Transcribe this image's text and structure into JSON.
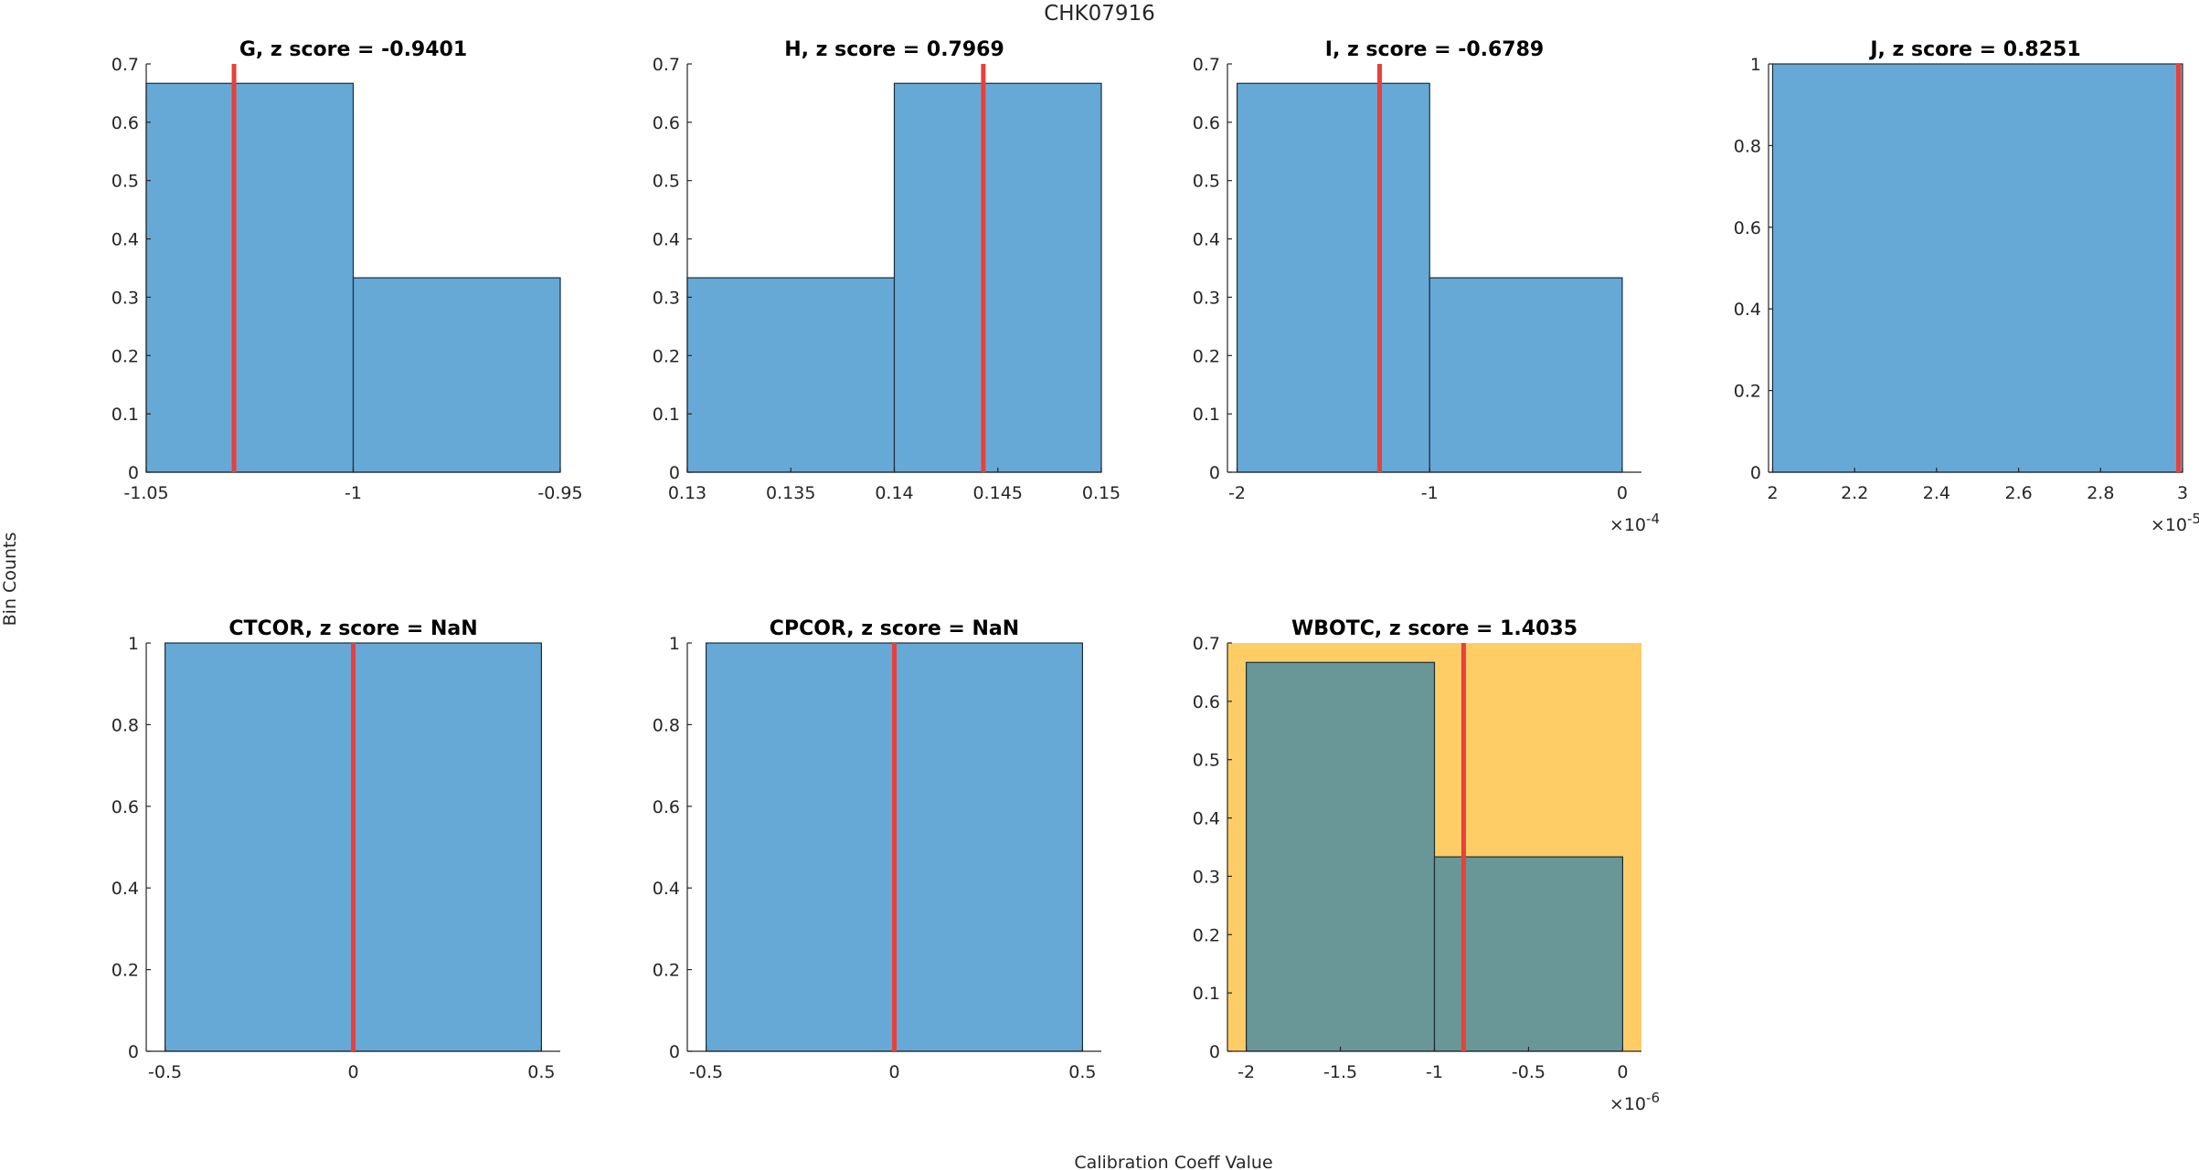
{
  "figure": {
    "title": "CHK07916",
    "xlabel": "Calibration Coeff Value",
    "ylabel": "Bin Counts"
  },
  "colors": {
    "bar_fill": "#67a9d6",
    "bar_edge": "#1b2d3a",
    "marker": "#e8403a",
    "highlight_bg": "#ffcd66",
    "highlight_bar": "#699797",
    "axis": "#262626"
  },
  "chart_data": [
    {
      "type": "bar",
      "title": "G, z score = -0.9401",
      "xlim": [
        -1.05,
        -0.95
      ],
      "ylim": [
        0,
        0.7
      ],
      "xticks": [
        -1.05,
        -1,
        -0.95
      ],
      "xtick_labels": [
        "-1.05",
        "-1",
        "-0.95"
      ],
      "yticks": [
        0,
        0.1,
        0.2,
        0.3,
        0.4,
        0.5,
        0.6,
        0.7
      ],
      "ytick_labels": [
        "0",
        "0.1",
        "0.2",
        "0.3",
        "0.4",
        "0.5",
        "0.6",
        "0.7"
      ],
      "bin_edges": [
        -1.05,
        -1,
        -0.95
      ],
      "values": [
        0.6667,
        0.3333
      ],
      "marker_x": -1.0288,
      "highlight": false
    },
    {
      "type": "bar",
      "title": "H, z score = 0.7969",
      "xlim": [
        0.13,
        0.15
      ],
      "ylim": [
        0,
        0.7
      ],
      "xticks": [
        0.13,
        0.135,
        0.14,
        0.145,
        0.15
      ],
      "xtick_labels": [
        "0.13",
        "0.135",
        "0.14",
        "0.145",
        "0.15"
      ],
      "yticks": [
        0,
        0.1,
        0.2,
        0.3,
        0.4,
        0.5,
        0.6,
        0.7
      ],
      "ytick_labels": [
        "0",
        "0.1",
        "0.2",
        "0.3",
        "0.4",
        "0.5",
        "0.6",
        "0.7"
      ],
      "bin_edges": [
        0.13,
        0.14,
        0.15
      ],
      "values": [
        0.3333,
        0.6667
      ],
      "marker_x": 0.1443,
      "highlight": false
    },
    {
      "type": "bar",
      "title": "I, z score = -0.6789",
      "xlim": [
        -2.05,
        0.1
      ],
      "ylim": [
        0,
        0.7
      ],
      "xticks": [
        -2,
        -1,
        0
      ],
      "xtick_labels": [
        "-2",
        "-1",
        "0"
      ],
      "yticks": [
        0,
        0.1,
        0.2,
        0.3,
        0.4,
        0.5,
        0.6,
        0.7
      ],
      "ytick_labels": [
        "0",
        "0.1",
        "0.2",
        "0.3",
        "0.4",
        "0.5",
        "0.6",
        "0.7"
      ],
      "bin_edges": [
        -2,
        -1,
        0
      ],
      "values": [
        0.6667,
        0.3333
      ],
      "marker_x": -1.26,
      "exponent_base": "×10",
      "exponent_power": "-4",
      "highlight": false
    },
    {
      "type": "bar",
      "title": "J, z score = 0.8251",
      "xlim": [
        1.99,
        3.0
      ],
      "ylim": [
        0,
        1
      ],
      "xticks": [
        2,
        2.2,
        2.4,
        2.6,
        2.8,
        3
      ],
      "xtick_labels": [
        "2",
        "2.2",
        "2.4",
        "2.6",
        "2.8",
        "3"
      ],
      "yticks": [
        0,
        0.2,
        0.4,
        0.6,
        0.8,
        1
      ],
      "ytick_labels": [
        "0",
        "0.2",
        "0.4",
        "0.6",
        "0.8",
        "1"
      ],
      "bin_edges": [
        2,
        3
      ],
      "values": [
        1
      ],
      "marker_x": 2.99,
      "exponent_base": "×10",
      "exponent_power": "-5",
      "highlight": false
    },
    {
      "type": "bar",
      "title": "CTCOR, z score = NaN",
      "xlim": [
        -0.55,
        0.55
      ],
      "ylim": [
        0,
        1
      ],
      "xticks": [
        -0.5,
        0,
        0.5
      ],
      "xtick_labels": [
        "-0.5",
        "0",
        "0.5"
      ],
      "yticks": [
        0,
        0.2,
        0.4,
        0.6,
        0.8,
        1
      ],
      "ytick_labels": [
        "0",
        "0.2",
        "0.4",
        "0.6",
        "0.8",
        "1"
      ],
      "bin_edges": [
        -0.5,
        0.5
      ],
      "values": [
        1
      ],
      "marker_x": 0,
      "highlight": false
    },
    {
      "type": "bar",
      "title": "CPCOR, z score = NaN",
      "xlim": [
        -0.55,
        0.55
      ],
      "ylim": [
        0,
        1
      ],
      "xticks": [
        -0.5,
        0,
        0.5
      ],
      "xtick_labels": [
        "-0.5",
        "0",
        "0.5"
      ],
      "yticks": [
        0,
        0.2,
        0.4,
        0.6,
        0.8,
        1
      ],
      "ytick_labels": [
        "0",
        "0.2",
        "0.4",
        "0.6",
        "0.8",
        "1"
      ],
      "bin_edges": [
        -0.5,
        0.5
      ],
      "values": [
        1
      ],
      "marker_x": 0,
      "highlight": false
    },
    {
      "type": "bar",
      "title": "WBOTC, z score = 1.4035",
      "xlim": [
        -2.1,
        0.1
      ],
      "ylim": [
        0,
        0.7
      ],
      "xticks": [
        -2,
        -1.5,
        -1,
        -0.5,
        0
      ],
      "xtick_labels": [
        "-2",
        "-1.5",
        "-1",
        "-0.5",
        "0"
      ],
      "yticks": [
        0,
        0.1,
        0.2,
        0.3,
        0.4,
        0.5,
        0.6,
        0.7
      ],
      "ytick_labels": [
        "0",
        "0.1",
        "0.2",
        "0.3",
        "0.4",
        "0.5",
        "0.6",
        "0.7"
      ],
      "bin_edges": [
        -2,
        -1,
        0
      ],
      "values": [
        0.6667,
        0.3333
      ],
      "marker_x": -0.845,
      "exponent_base": "×10",
      "exponent_power": "-6",
      "highlight": true
    }
  ]
}
